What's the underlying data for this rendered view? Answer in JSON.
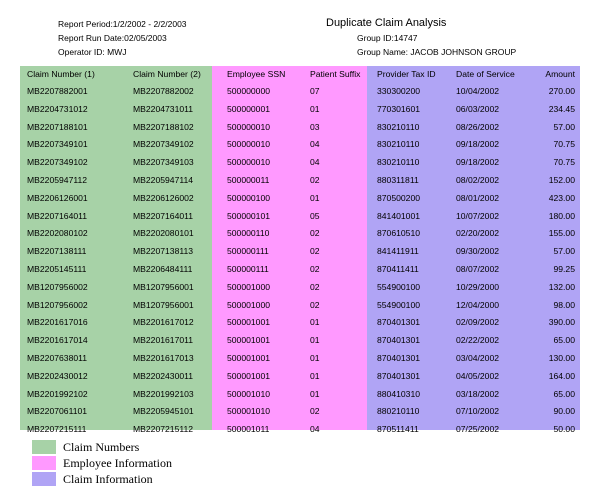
{
  "header": {
    "report_period": "Report Period:1/2/2002 - 2/2/2003",
    "run_date": "Report Run Date:02/05/2003",
    "operator": "Operator ID: MWJ",
    "title": "Duplicate Claim Analysis",
    "group_id": "Group ID:14747",
    "group_name": "Group Name: JACOB  JOHNSON  GROUP"
  },
  "table": {
    "columns": [
      "Claim Number (1)",
      "Claim Number (2)",
      "Employee SSN",
      "Patient Suffix",
      "Provider Tax ID",
      "Date of Service",
      "Amount"
    ],
    "rows": [
      [
        "MB2207882001",
        "MB2207882002",
        "500000000",
        "07",
        "330300200",
        "10/04/2002",
        "270.00"
      ],
      [
        "MB2204731012",
        "MB2204731011",
        "500000001",
        "01",
        "770301601",
        "06/03/2002",
        "234.45"
      ],
      [
        "MB2207188101",
        "MB2207188102",
        "500000010",
        "03",
        "830210110",
        "08/26/2002",
        "57.00"
      ],
      [
        "MB2207349101",
        "MB2207349102",
        "500000010",
        "04",
        "830210110",
        "09/18/2002",
        "70.75"
      ],
      [
        "MB2207349102",
        "MB2207349103",
        "500000010",
        "04",
        "830210110",
        "09/18/2002",
        "70.75"
      ],
      [
        "MB2205947112",
        "MB2205947114",
        "500000011",
        "02",
        "880311811",
        "08/02/2002",
        "152.00"
      ],
      [
        "MB2206126001",
        "MB2206126002",
        "500000100",
        "01",
        "870500200",
        "08/01/2002",
        "423.00"
      ],
      [
        "MB2207164011",
        "MB2207164011",
        "500000101",
        "05",
        "841401001",
        "10/07/2002",
        "180.00"
      ],
      [
        "MB2202080102",
        "MB2202080101",
        "500000110",
        "02",
        "870610510",
        "02/20/2002",
        "155.00"
      ],
      [
        "MB2207138111",
        "MB2207138113",
        "500000111",
        "02",
        "841411911",
        "09/30/2002",
        "57.00"
      ],
      [
        "MB2205145111",
        "MB2206484111",
        "500000111",
        "02",
        "870411411",
        "08/07/2002",
        "99.25"
      ],
      [
        "MB1207956002",
        "MB1207956001",
        "500001000",
        "02",
        "554900100",
        "10/29/2000",
        "132.00"
      ],
      [
        "MB1207956002",
        "MB1207956001",
        "500001000",
        "02",
        "554900100",
        "12/04/2000",
        "98.00"
      ],
      [
        "MB2201617016",
        "MB2201617012",
        "500001001",
        "01",
        "870401301",
        "02/09/2002",
        "390.00"
      ],
      [
        "MB2201617014",
        "MB2201617011",
        "500001001",
        "01",
        "870401301",
        "02/22/2002",
        "65.00"
      ],
      [
        "MB2207638011",
        "MB2201617013",
        "500001001",
        "01",
        "870401301",
        "03/04/2002",
        "130.00"
      ],
      [
        "MB2202430012",
        "MB2202430011",
        "500001001",
        "01",
        "870401301",
        "04/05/2002",
        "164.00"
      ],
      [
        "MB2201992102",
        "MB2201992103",
        "500001010",
        "01",
        "880410310",
        "03/18/2002",
        "65.00"
      ],
      [
        "MB2207061101",
        "MB2205945101",
        "500001010",
        "02",
        "880210110",
        "07/10/2002",
        "90.00"
      ],
      [
        "MB2207215111",
        "MB2207215112",
        "500001011",
        "04",
        "870511411",
        "07/25/2002",
        "50.00"
      ]
    ]
  },
  "legend": [
    {
      "label": "Claim Numbers",
      "color": "#a7d2a7"
    },
    {
      "label": "Employee Information",
      "color": "#ff99ff"
    },
    {
      "label": "Claim Information",
      "color": "#b0a4f5"
    }
  ]
}
